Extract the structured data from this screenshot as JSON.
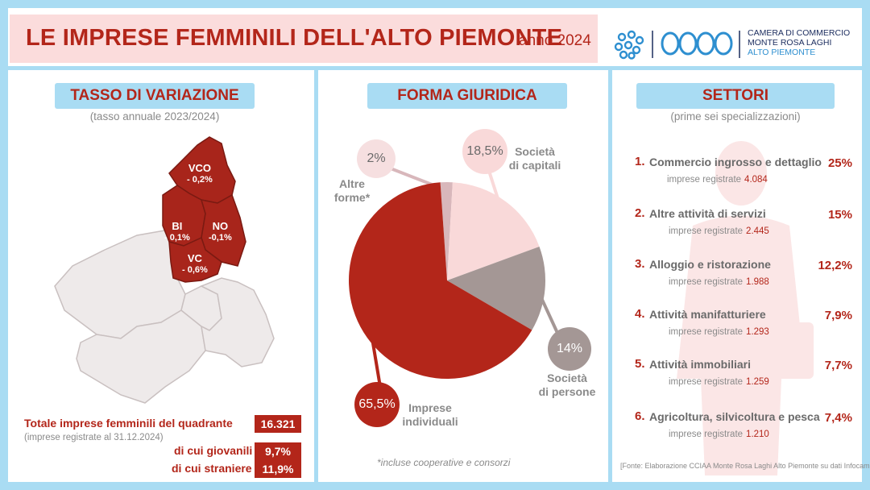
{
  "header": {
    "title": "LE IMPRESE FEMMINILI DELL'ALTO PIEMONTE",
    "year": "anno 2024",
    "logo_line1": "CAMERA DI COMMERCIO",
    "logo_line2": "MONTE ROSA LAGHI",
    "logo_line3": "ALTO PIEMONTE"
  },
  "variazione": {
    "heading": "TASSO DI VARIAZIONE",
    "subheading": "(tasso annuale 2023/2024)",
    "provinces": [
      {
        "code": "VCO",
        "value": "- 0,2%"
      },
      {
        "code": "BI",
        "value": "- 0,1%"
      },
      {
        "code": "NO",
        "value": "-0,1%"
      },
      {
        "code": "VC",
        "value": "- 0,6%"
      }
    ],
    "totale_label": "Totale imprese femminili del quadrante",
    "totale_value": "16.321",
    "totale_note": "(imprese registrate al 31.12.2024)",
    "giovanili_label": "di cui giovanili",
    "giovanili_value": "9,7%",
    "straniere_label": "di cui straniere",
    "straniere_value": "11,9%"
  },
  "forma": {
    "heading": "FORMA GIURIDICA",
    "note": "*incluse cooperative e consorzi"
  },
  "chart_data": {
    "type": "pie",
    "slices": [
      {
        "label": "Società di capitali",
        "value": 18.5,
        "display": "18,5%",
        "color": "#f9d9d9"
      },
      {
        "label": "Società di persone",
        "value": 14,
        "display": "14%",
        "color": "#a49795"
      },
      {
        "label": "Imprese individuali",
        "value": 65.5,
        "display": "65,5%",
        "color": "#b3261a"
      },
      {
        "label": "Altre forme*",
        "value": 2,
        "display": "2%",
        "color": "#d8b7bb"
      }
    ],
    "labels_text": {
      "capitali_1": "Società",
      "capitali_2": "di capitali",
      "persone_1": "Società",
      "persone_2": "di persone",
      "individuali_1": "Imprese",
      "individuali_2": "individuali",
      "altre_1": "Altre",
      "altre_2": "forme*"
    }
  },
  "settori": {
    "heading": "SETTORI",
    "subheading": "(prime sei specializzazioni)",
    "reg_label": "imprese registrate",
    "items": [
      {
        "num": "1.",
        "name": "Commercio ingrosso e dettaglio",
        "pct": "25%",
        "reg": "4.084"
      },
      {
        "num": "2.",
        "name": "Altre attività di servizi",
        "pct": "15%",
        "reg": "2.445"
      },
      {
        "num": "3.",
        "name": "Alloggio e ristorazione",
        "pct": "12,2%",
        "reg": "1.988"
      },
      {
        "num": "4.",
        "name": "Attività manifatturiere",
        "pct": "7,9%",
        "reg": "1.293"
      },
      {
        "num": "5.",
        "name": "Attività immobiliari",
        "pct": "7,7%",
        "reg": "1.259"
      },
      {
        "num": "6.",
        "name": "Agricoltura, silvicoltura e pesca",
        "pct": "7,4%",
        "reg": "1.210"
      }
    ],
    "source": "[Fonte: Elaborazione CCIAA Monte Rosa Laghi Alto Piemonte su dati Infocamere]"
  }
}
